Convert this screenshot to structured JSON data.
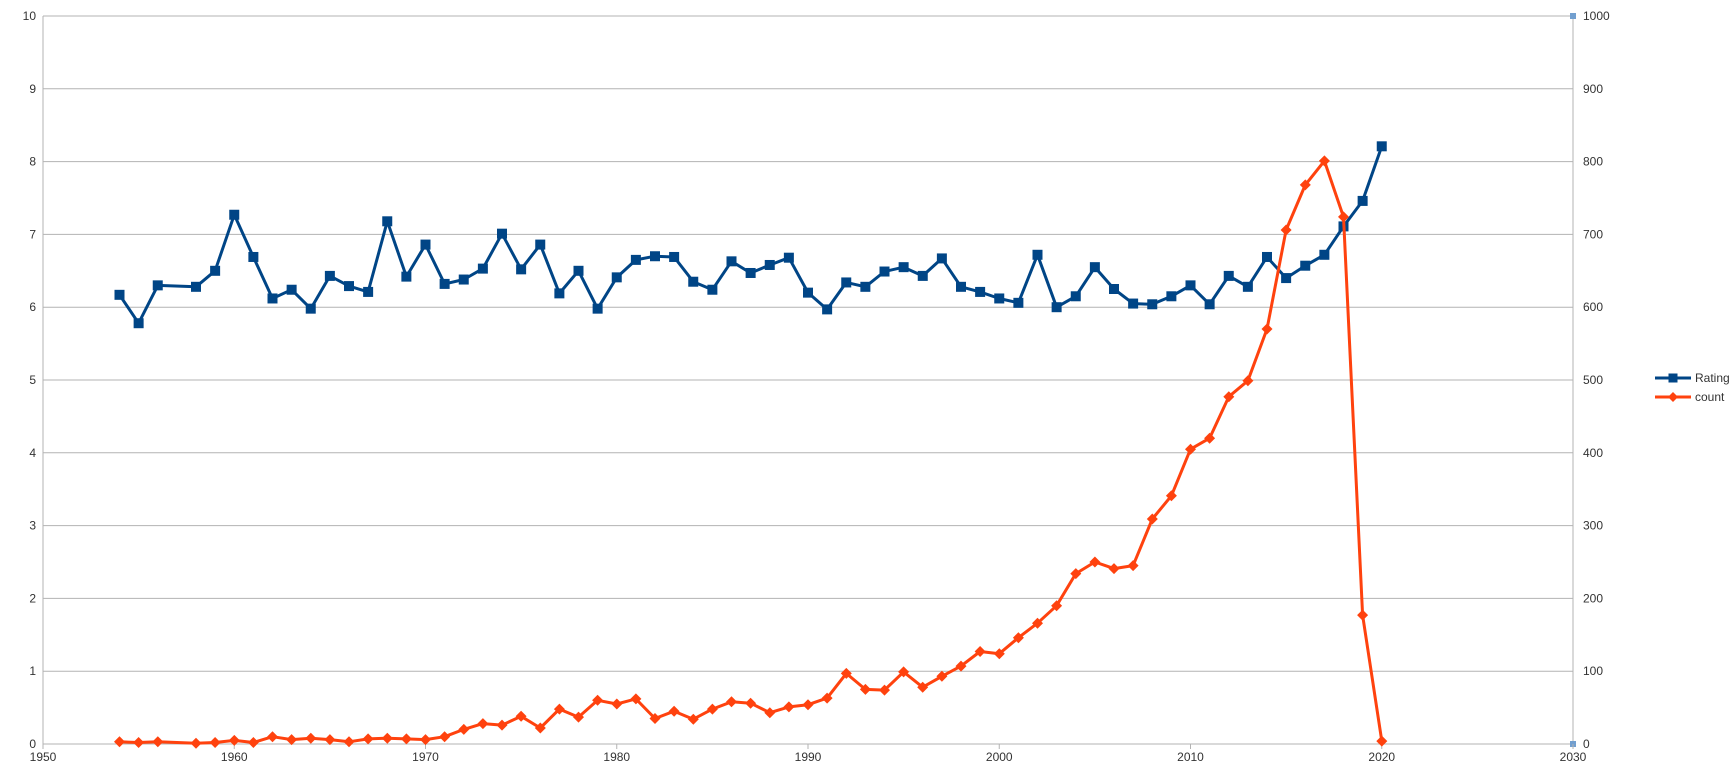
{
  "chart_data": {
    "type": "line",
    "title": "",
    "xlabel": "",
    "ylabel": "",
    "y2label": "",
    "xlim": [
      1950,
      2030
    ],
    "x_ticks": [
      1950,
      1960,
      1970,
      1980,
      1990,
      2000,
      2010,
      2020,
      2030
    ],
    "ylim": [
      0,
      10
    ],
    "y_ticks": [
      0,
      1,
      2,
      3,
      4,
      5,
      6,
      7,
      8,
      9,
      10
    ],
    "y2lim": [
      0,
      1000
    ],
    "y2_ticks": [
      0,
      100,
      200,
      300,
      400,
      500,
      600,
      700,
      800,
      900,
      1000
    ],
    "grid": true,
    "legend_position": "right",
    "series": [
      {
        "name": "Rating",
        "axis": "left",
        "color": "#004586",
        "marker": "square",
        "x": [
          1954,
          1955,
          1956,
          1958,
          1959,
          1960,
          1961,
          1962,
          1963,
          1964,
          1965,
          1966,
          1967,
          1968,
          1969,
          1970,
          1971,
          1972,
          1973,
          1974,
          1975,
          1976,
          1977,
          1978,
          1979,
          1980,
          1981,
          1982,
          1983,
          1984,
          1985,
          1986,
          1987,
          1988,
          1989,
          1990,
          1991,
          1992,
          1993,
          1994,
          1995,
          1996,
          1997,
          1998,
          1999,
          2000,
          2001,
          2002,
          2003,
          2004,
          2005,
          2006,
          2007,
          2008,
          2009,
          2010,
          2011,
          2012,
          2013,
          2014,
          2015,
          2016,
          2017,
          2018,
          2019,
          2020
        ],
        "values": [
          6.17,
          5.78,
          6.3,
          6.28,
          6.5,
          7.27,
          6.69,
          6.12,
          6.24,
          5.98,
          6.43,
          6.29,
          6.21,
          7.18,
          6.42,
          6.86,
          6.32,
          6.38,
          6.53,
          7.01,
          6.52,
          6.86,
          6.19,
          6.5,
          5.98,
          6.41,
          6.65,
          6.7,
          6.69,
          6.35,
          6.24,
          6.63,
          6.47,
          6.58,
          6.68,
          6.2,
          5.97,
          6.34,
          6.28,
          6.49,
          6.55,
          6.43,
          6.67,
          6.28,
          6.21,
          6.12,
          6.06,
          6.72,
          6.0,
          6.15,
          6.55,
          6.25,
          6.05,
          6.04,
          6.15,
          6.3,
          6.04,
          6.43,
          6.28,
          6.69,
          6.4,
          6.57,
          6.72,
          7.11,
          7.46,
          8.21
        ]
      },
      {
        "name": "count",
        "axis": "right",
        "color": "#ff420e",
        "marker": "diamond",
        "x": [
          1954,
          1955,
          1956,
          1958,
          1959,
          1960,
          1961,
          1962,
          1963,
          1964,
          1965,
          1966,
          1967,
          1968,
          1969,
          1970,
          1971,
          1972,
          1973,
          1974,
          1975,
          1976,
          1977,
          1978,
          1979,
          1980,
          1981,
          1982,
          1983,
          1984,
          1985,
          1986,
          1987,
          1988,
          1989,
          1990,
          1991,
          1992,
          1993,
          1994,
          1995,
          1996,
          1997,
          1998,
          1999,
          2000,
          2001,
          2002,
          2003,
          2004,
          2005,
          2006,
          2007,
          2008,
          2009,
          2010,
          2011,
          2012,
          2013,
          2014,
          2015,
          2016,
          2017,
          2018,
          2019,
          2020
        ],
        "values": [
          3,
          2,
          3,
          1,
          2,
          5,
          2,
          10,
          6,
          8,
          6,
          3,
          7,
          8,
          7,
          6,
          10,
          20,
          28,
          26,
          38,
          22,
          48,
          37,
          60,
          55,
          62,
          35,
          45,
          34,
          48,
          58,
          56,
          43,
          51,
          54,
          63,
          97,
          75,
          74,
          99,
          78,
          93,
          107,
          127,
          124,
          146,
          166,
          190,
          234,
          250,
          241,
          245,
          309,
          341,
          405,
          420,
          477,
          499,
          570,
          706,
          768,
          801,
          724,
          177,
          4
        ]
      }
    ]
  }
}
